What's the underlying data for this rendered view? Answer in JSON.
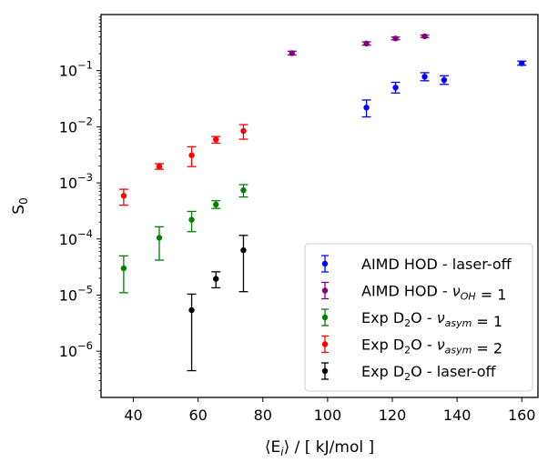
{
  "chart_data": {
    "type": "scatter",
    "title": "",
    "xlabel": "⟨E_i⟩ / [ kJ/mol ]",
    "ylabel": "S_0",
    "xlim": [
      30,
      165
    ],
    "ylim": [
      1.5e-07,
      1.0
    ],
    "yscale": "log",
    "grid": false,
    "legend_position": "lower-right",
    "x_ticks": [
      40,
      60,
      80,
      100,
      120,
      140,
      160
    ],
    "y_ticks": [
      {
        "value": 1e-06,
        "base": "10",
        "exp": "−6"
      },
      {
        "value": 1e-05,
        "base": "10",
        "exp": "−5"
      },
      {
        "value": 0.0001,
        "base": "10",
        "exp": "−4"
      },
      {
        "value": 0.001,
        "base": "10",
        "exp": "−3"
      },
      {
        "value": 0.01,
        "base": "10",
        "exp": "−2"
      },
      {
        "value": 0.1,
        "base": "10",
        "exp": "−1"
      }
    ],
    "series": [
      {
        "name": "AIMD HOD - laser-off",
        "color": "#0000ff",
        "points": [
          {
            "x": 112,
            "y": 0.022,
            "lo": 0.015,
            "hi": 0.03
          },
          {
            "x": 121,
            "y": 0.05,
            "lo": 0.04,
            "hi": 0.062
          },
          {
            "x": 130,
            "y": 0.078,
            "lo": 0.066,
            "hi": 0.092
          },
          {
            "x": 136,
            "y": 0.068,
            "lo": 0.057,
            "hi": 0.081
          },
          {
            "x": 160,
            "y": 0.135,
            "lo": 0.125,
            "hi": 0.148
          }
        ]
      },
      {
        "name": "AIMD HOD - ν_OH = 1",
        "color": "#800080",
        "points": [
          {
            "x": 89,
            "y": 0.205,
            "lo": 0.19,
            "hi": 0.222
          },
          {
            "x": 112,
            "y": 0.305,
            "lo": 0.285,
            "hi": 0.326
          },
          {
            "x": 121,
            "y": 0.375,
            "lo": 0.355,
            "hi": 0.397
          },
          {
            "x": 130,
            "y": 0.41,
            "lo": 0.39,
            "hi": 0.432
          }
        ]
      },
      {
        "name": "Exp D2O - ν_asym = 1",
        "color": "#008000",
        "points": [
          {
            "x": 37,
            "y": 3e-05,
            "lo": 1.1e-05,
            "hi": 5e-05
          },
          {
            "x": 48,
            "y": 0.000105,
            "lo": 4.2e-05,
            "hi": 0.000165
          },
          {
            "x": 58,
            "y": 0.00022,
            "lo": 0.000135,
            "hi": 0.00031
          },
          {
            "x": 65.5,
            "y": 0.00041,
            "lo": 0.00035,
            "hi": 0.00048
          },
          {
            "x": 74,
            "y": 0.00074,
            "lo": 0.00056,
            "hi": 0.00093
          }
        ]
      },
      {
        "name": "Exp D2O - ν_asym = 2",
        "color": "#ff0000",
        "points": [
          {
            "x": 37,
            "y": 0.00059,
            "lo": 0.0004,
            "hi": 0.00077
          },
          {
            "x": 48,
            "y": 0.00195,
            "lo": 0.00175,
            "hi": 0.0022
          },
          {
            "x": 58,
            "y": 0.0031,
            "lo": 0.00195,
            "hi": 0.0044
          },
          {
            "x": 65.5,
            "y": 0.0059,
            "lo": 0.0051,
            "hi": 0.0067
          },
          {
            "x": 74,
            "y": 0.0084,
            "lo": 0.006,
            "hi": 0.0109
          }
        ]
      },
      {
        "name": "Exp D2O - laser-off",
        "color": "#000000",
        "points": [
          {
            "x": 58,
            "y": 5.4e-06,
            "lo": 4.5e-07,
            "hi": 1.04e-05
          },
          {
            "x": 65.5,
            "y": 1.95e-05,
            "lo": 1.35e-05,
            "hi": 2.6e-05
          },
          {
            "x": 74,
            "y": 6.3e-05,
            "lo": 1.15e-05,
            "hi": 0.000116
          }
        ]
      }
    ]
  }
}
